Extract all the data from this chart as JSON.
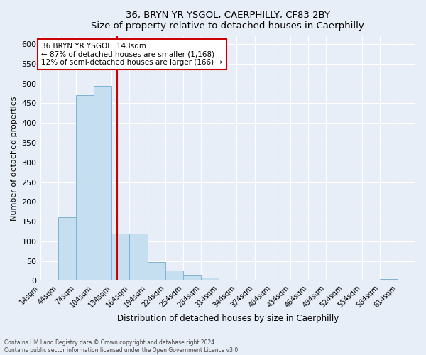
{
  "title": "36, BRYN YR YSGOL, CAERPHILLY, CF83 2BY",
  "subtitle": "Size of property relative to detached houses in Caerphilly",
  "xlabel": "Distribution of detached houses by size in Caerphilly",
  "ylabel": "Number of detached properties",
  "bar_values": [
    0,
    160,
    470,
    495,
    120,
    120,
    47,
    25,
    14,
    8,
    0,
    0,
    0,
    0,
    0,
    0,
    0,
    0,
    0,
    5
  ],
  "bin_labels": [
    "14sqm",
    "44sqm",
    "74sqm",
    "104sqm",
    "134sqm",
    "164sqm",
    "194sqm",
    "224sqm",
    "254sqm",
    "284sqm",
    "314sqm",
    "344sqm",
    "374sqm",
    "404sqm",
    "434sqm",
    "464sqm",
    "494sqm",
    "524sqm",
    "554sqm",
    "584sqm",
    "614sqm"
  ],
  "bin_edges": [
    14,
    44,
    74,
    104,
    134,
    164,
    194,
    224,
    254,
    284,
    314,
    344,
    374,
    404,
    434,
    464,
    494,
    524,
    554,
    584,
    614
  ],
  "bar_color": "#c5dff0",
  "bar_edge_color": "#7fb3d3",
  "vline_x": 143,
  "vline_color": "#cc0000",
  "ylim": [
    0,
    620
  ],
  "yticks": [
    0,
    50,
    100,
    150,
    200,
    250,
    300,
    350,
    400,
    450,
    500,
    550,
    600
  ],
  "annotation_title": "36 BRYN YR YSGOL: 143sqm",
  "annotation_line1": "← 87% of detached houses are smaller (1,168)",
  "annotation_line2": "12% of semi-detached houses are larger (166) →",
  "annotation_box_color": "#cc0000",
  "footer_line1": "Contains HM Land Registry data © Crown copyright and database right 2024.",
  "footer_line2": "Contains public sector information licensed under the Open Government Licence v3.0.",
  "bg_color": "#e8eef8",
  "plot_bg_color": "#e8eef8"
}
